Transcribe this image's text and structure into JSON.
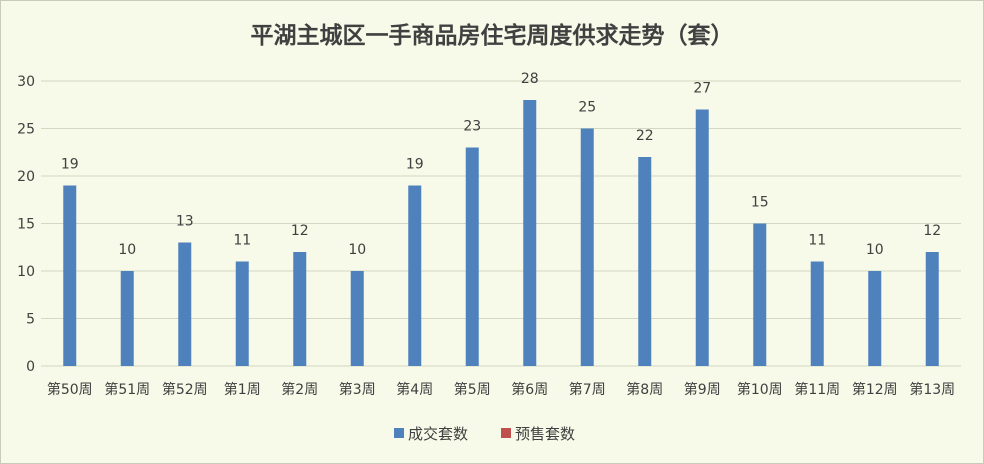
{
  "chart_data": {
    "type": "bar",
    "title": "平湖主城区一手商品房住宅周度供求走势（套）",
    "categories": [
      "第50周",
      "第51周",
      "第52周",
      "第1周",
      "第2周",
      "第3周",
      "第4周",
      "第5周",
      "第6周",
      "第7周",
      "第8周",
      "第9周",
      "第10周",
      "第11周",
      "第12周",
      "第13周"
    ],
    "series": [
      {
        "name": "成交套数",
        "color": "#4f81bd",
        "values": [
          19,
          10,
          13,
          11,
          12,
          10,
          19,
          23,
          28,
          25,
          22,
          27,
          15,
          11,
          10,
          12
        ]
      },
      {
        "name": "预售套数",
        "color": "#c0504d",
        "values": [
          0,
          0,
          0,
          0,
          0,
          0,
          0,
          0,
          0,
          0,
          0,
          0,
          0,
          0,
          0,
          0
        ]
      }
    ],
    "yticks": [
      "0",
      "5",
      "10",
      "15",
      "20",
      "25",
      "30"
    ],
    "ylim": [
      0,
      30
    ],
    "grid": true,
    "legend": "bottom"
  }
}
